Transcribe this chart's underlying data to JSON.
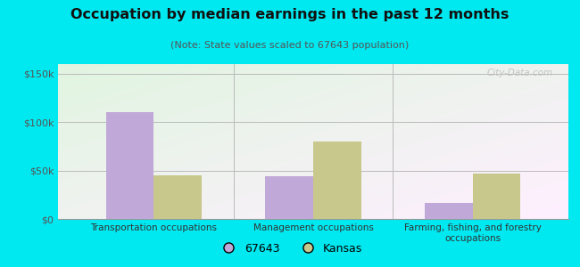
{
  "title": "Occupation by median earnings in the past 12 months",
  "subtitle": "(Note: State values scaled to 67643 population)",
  "categories": [
    "Transportation occupations",
    "Management occupations",
    "Farming, fishing, and forestry\noccupations"
  ],
  "values_67643": [
    110000,
    44000,
    17000
  ],
  "values_kansas": [
    45000,
    80000,
    47000
  ],
  "color_67643": "#c0a8d8",
  "color_kansas": "#c8c88c",
  "ylim": [
    0,
    160000
  ],
  "yticks": [
    0,
    50000,
    100000,
    150000
  ],
  "ytick_labels": [
    "$0",
    "$50k",
    "$100k",
    "$150k"
  ],
  "outer_bg": "#00e8f0",
  "legend_labels": [
    "67643",
    "Kansas"
  ],
  "bar_width": 0.3,
  "watermark": "City-Data.com"
}
